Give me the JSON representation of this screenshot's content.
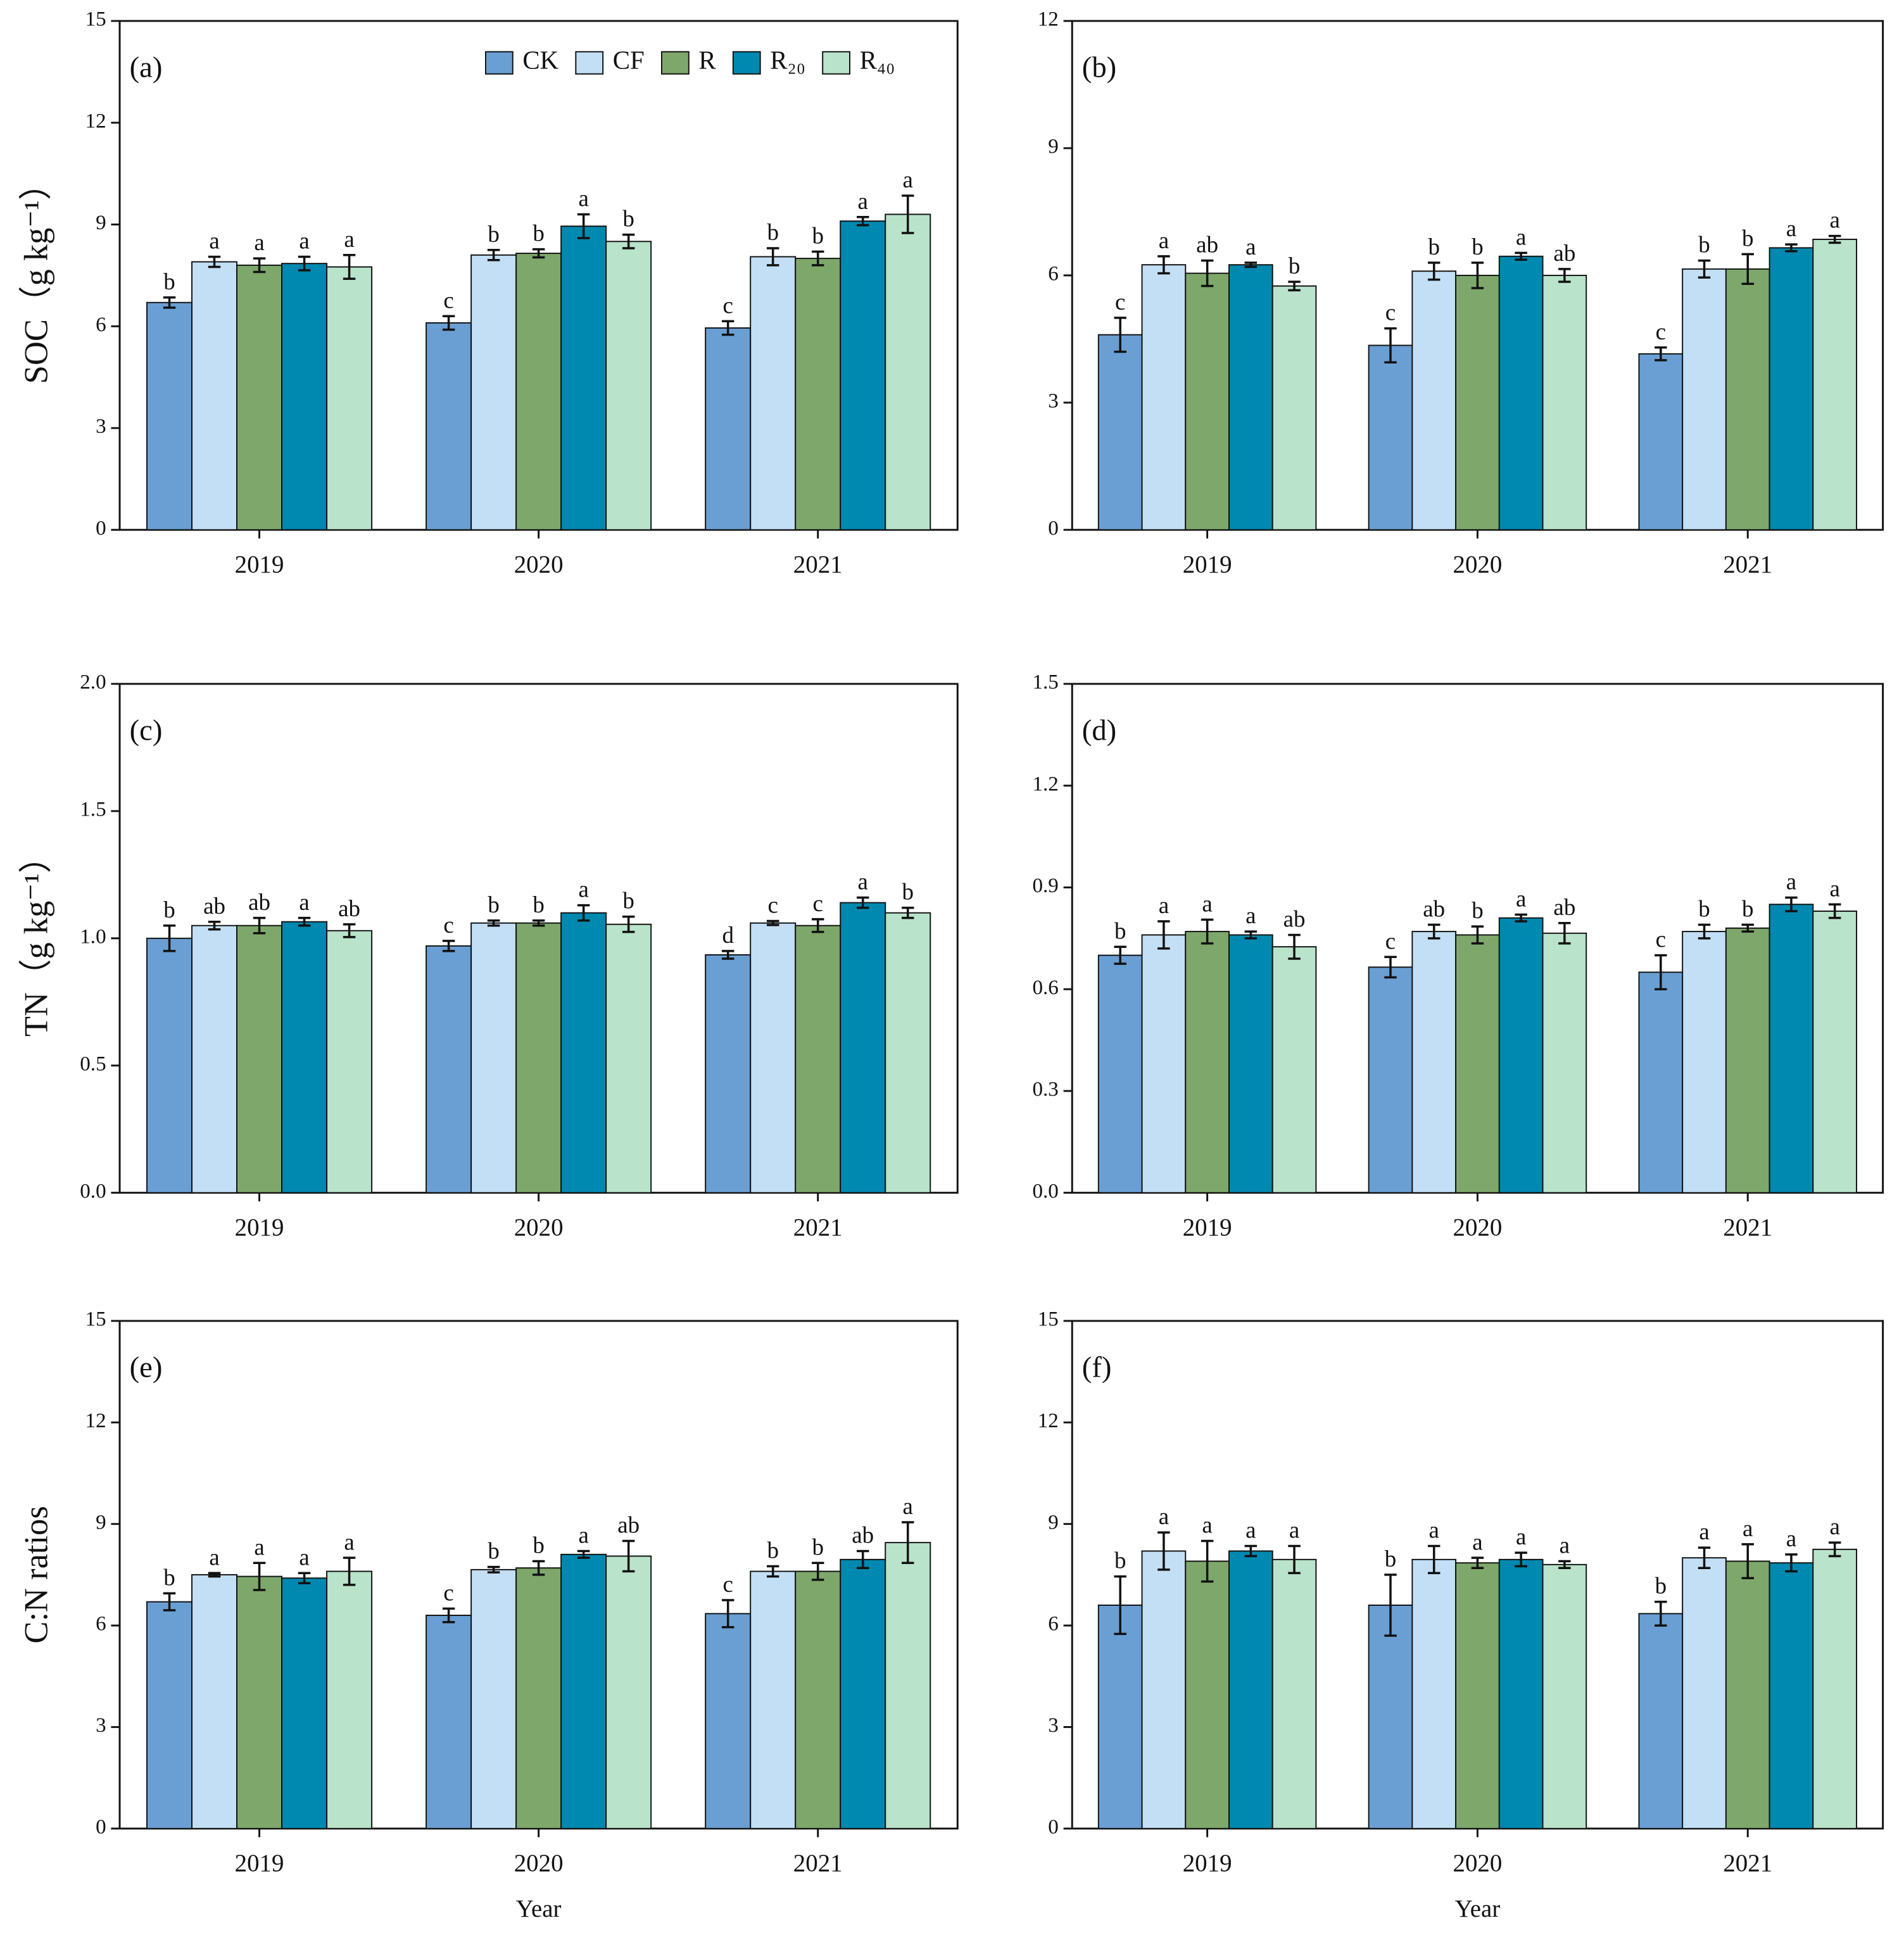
{
  "chart_data": [
    {
      "type": "bar",
      "panel_label": "(a)",
      "ylabel": "SOC（g kg⁻¹）",
      "categories": [
        "2019",
        "2020",
        "2021"
      ],
      "ylim": [
        0,
        15
      ],
      "yticks": [
        0,
        3,
        6,
        9,
        12,
        15
      ],
      "legend": "upper right",
      "series": [
        {
          "name": "CK",
          "color": "#6a9fd4",
          "values": [
            6.7,
            6.1,
            5.95
          ],
          "errors": [
            0.15,
            0.2,
            0.2
          ],
          "letters": [
            "b",
            "c",
            "c"
          ]
        },
        {
          "name": "CF",
          "color": "#c3dff5",
          "values": [
            7.9,
            8.1,
            8.05
          ],
          "errors": [
            0.15,
            0.15,
            0.25
          ],
          "letters": [
            "a",
            "b",
            "b"
          ]
        },
        {
          "name": "R",
          "color": "#7ea86b",
          "values": [
            7.8,
            8.15,
            8.0
          ],
          "errors": [
            0.2,
            0.12,
            0.2
          ],
          "letters": [
            "a",
            "b",
            "b"
          ]
        },
        {
          "name": "R₂₀",
          "color": "#0089b0",
          "values": [
            7.85,
            8.95,
            9.1
          ],
          "errors": [
            0.2,
            0.35,
            0.12
          ],
          "letters": [
            "a",
            "a",
            "a"
          ]
        },
        {
          "name": "R₄₀",
          "color": "#b9e3cb",
          "values": [
            7.75,
            8.5,
            9.3
          ],
          "errors": [
            0.35,
            0.2,
            0.55
          ],
          "letters": [
            "a",
            "b",
            "a"
          ]
        }
      ]
    },
    {
      "type": "bar",
      "panel_label": "(b)",
      "categories": [
        "2019",
        "2020",
        "2021"
      ],
      "ylim": [
        0,
        12
      ],
      "yticks": [
        0,
        3,
        6,
        9,
        12
      ],
      "series": [
        {
          "color": "#6a9fd4",
          "values": [
            4.6,
            4.35,
            4.15
          ],
          "errors": [
            0.4,
            0.4,
            0.15
          ],
          "letters": [
            "c",
            "c",
            "c"
          ]
        },
        {
          "color": "#c3dff5",
          "values": [
            6.25,
            6.1,
            6.15
          ],
          "errors": [
            0.2,
            0.2,
            0.2
          ],
          "letters": [
            "a",
            "b",
            "b"
          ]
        },
        {
          "color": "#7ea86b",
          "values": [
            6.05,
            6.0,
            6.15
          ],
          "errors": [
            0.3,
            0.3,
            0.35
          ],
          "letters": [
            "ab",
            "b",
            "b"
          ]
        },
        {
          "color": "#0089b0",
          "values": [
            6.25,
            6.45,
            6.65
          ],
          "errors": [
            0.05,
            0.08,
            0.08
          ],
          "letters": [
            "a",
            "a",
            "a"
          ]
        },
        {
          "color": "#b9e3cb",
          "values": [
            5.75,
            6.0,
            6.85
          ],
          "errors": [
            0.1,
            0.15,
            0.08
          ],
          "letters": [
            "b",
            "ab",
            "a"
          ]
        }
      ]
    },
    {
      "type": "bar",
      "panel_label": "(c)",
      "ylabel": "TN（g kg⁻¹）",
      "categories": [
        "2019",
        "2020",
        "2021"
      ],
      "ylim": [
        0,
        2
      ],
      "yticks": [
        {
          "value": 0,
          "label": "0.0"
        },
        0.5,
        {
          "value": 1,
          "label": "1.0"
        },
        1.5,
        {
          "value": 2,
          "label": "2.0"
        }
      ],
      "series": [
        {
          "color": "#6a9fd4",
          "values": [
            1.0,
            0.97,
            0.935
          ],
          "errors": [
            0.05,
            0.02,
            0.015
          ],
          "letters": [
            "b",
            "c",
            "d"
          ]
        },
        {
          "color": "#c3dff5",
          "values": [
            1.05,
            1.06,
            1.06
          ],
          "errors": [
            0.015,
            0.01,
            0.008
          ],
          "letters": [
            "ab",
            "b",
            "c"
          ]
        },
        {
          "color": "#7ea86b",
          "values": [
            1.05,
            1.06,
            1.05
          ],
          "errors": [
            0.03,
            0.01,
            0.025
          ],
          "letters": [
            "ab",
            "b",
            "c"
          ]
        },
        {
          "color": "#0089b0",
          "values": [
            1.065,
            1.1,
            1.14
          ],
          "errors": [
            0.015,
            0.03,
            0.02
          ],
          "letters": [
            "a",
            "a",
            "a"
          ]
        },
        {
          "color": "#b9e3cb",
          "values": [
            1.03,
            1.055,
            1.1
          ],
          "errors": [
            0.025,
            0.03,
            0.02
          ],
          "letters": [
            "ab",
            "b",
            "b"
          ]
        }
      ]
    },
    {
      "type": "bar",
      "panel_label": "(d)",
      "categories": [
        "2019",
        "2020",
        "2021"
      ],
      "ylim": [
        0,
        1.5
      ],
      "yticks": [
        {
          "value": 0,
          "label": "0.0"
        },
        0.3,
        0.6,
        0.9,
        1.2,
        1.5
      ],
      "series": [
        {
          "color": "#6a9fd4",
          "values": [
            0.7,
            0.665,
            0.65
          ],
          "errors": [
            0.025,
            0.03,
            0.05
          ],
          "letters": [
            "b",
            "c",
            "c"
          ]
        },
        {
          "color": "#c3dff5",
          "values": [
            0.76,
            0.77,
            0.77
          ],
          "errors": [
            0.04,
            0.02,
            0.02
          ],
          "letters": [
            "a",
            "ab",
            "b"
          ]
        },
        {
          "color": "#7ea86b",
          "values": [
            0.77,
            0.76,
            0.78
          ],
          "errors": [
            0.035,
            0.025,
            0.01
          ],
          "letters": [
            "a",
            "b",
            "b"
          ]
        },
        {
          "color": "#0089b0",
          "values": [
            0.76,
            0.81,
            0.85
          ],
          "errors": [
            0.01,
            0.01,
            0.02
          ],
          "letters": [
            "a",
            "a",
            "a"
          ]
        },
        {
          "color": "#b9e3cb",
          "values": [
            0.725,
            0.765,
            0.83
          ],
          "errors": [
            0.035,
            0.03,
            0.02
          ],
          "letters": [
            "ab",
            "ab",
            "a"
          ]
        }
      ]
    },
    {
      "type": "bar",
      "panel_label": "(e)",
      "ylabel": "C:N ratios",
      "xlabel": "Year",
      "categories": [
        "2019",
        "2020",
        "2021"
      ],
      "ylim": [
        0,
        15
      ],
      "yticks": [
        0,
        3,
        6,
        9,
        12,
        15
      ],
      "series": [
        {
          "color": "#6a9fd4",
          "values": [
            6.7,
            6.3,
            6.35
          ],
          "errors": [
            0.25,
            0.2,
            0.4
          ],
          "letters": [
            "b",
            "c",
            "c"
          ]
        },
        {
          "color": "#c3dff5",
          "values": [
            7.5,
            7.65,
            7.6
          ],
          "errors": [
            0.05,
            0.08,
            0.15
          ],
          "letters": [
            "a",
            "b",
            "b"
          ]
        },
        {
          "color": "#7ea86b",
          "values": [
            7.45,
            7.7,
            7.6
          ],
          "errors": [
            0.4,
            0.2,
            0.25
          ],
          "letters": [
            "a",
            "b",
            "b"
          ]
        },
        {
          "color": "#0089b0",
          "values": [
            7.4,
            8.1,
            7.95
          ],
          "errors": [
            0.15,
            0.1,
            0.25
          ],
          "letters": [
            "a",
            "a",
            "ab"
          ]
        },
        {
          "color": "#b9e3cb",
          "values": [
            7.6,
            8.05,
            8.45
          ],
          "errors": [
            0.4,
            0.45,
            0.6
          ],
          "letters": [
            "a",
            "ab",
            "a"
          ]
        }
      ]
    },
    {
      "type": "bar",
      "panel_label": "(f)",
      "xlabel": "Year",
      "categories": [
        "2019",
        "2020",
        "2021"
      ],
      "ylim": [
        0,
        15
      ],
      "yticks": [
        0,
        3,
        6,
        9,
        12,
        15
      ],
      "series": [
        {
          "color": "#6a9fd4",
          "values": [
            6.6,
            6.6,
            6.35
          ],
          "errors": [
            0.85,
            0.9,
            0.35
          ],
          "letters": [
            "b",
            "b",
            "b"
          ]
        },
        {
          "color": "#c3dff5",
          "values": [
            8.2,
            7.95,
            8.0
          ],
          "errors": [
            0.55,
            0.4,
            0.3
          ],
          "letters": [
            "a",
            "a",
            "a"
          ]
        },
        {
          "color": "#7ea86b",
          "values": [
            7.9,
            7.85,
            7.9
          ],
          "errors": [
            0.6,
            0.15,
            0.5
          ],
          "letters": [
            "a",
            "a",
            "a"
          ]
        },
        {
          "color": "#0089b0",
          "values": [
            8.2,
            7.95,
            7.85
          ],
          "errors": [
            0.15,
            0.2,
            0.25
          ],
          "letters": [
            "a",
            "a",
            "a"
          ]
        },
        {
          "color": "#b9e3cb",
          "values": [
            7.95,
            7.8,
            8.25
          ],
          "errors": [
            0.4,
            0.1,
            0.2
          ],
          "letters": [
            "a",
            "a",
            "a"
          ]
        }
      ]
    }
  ]
}
